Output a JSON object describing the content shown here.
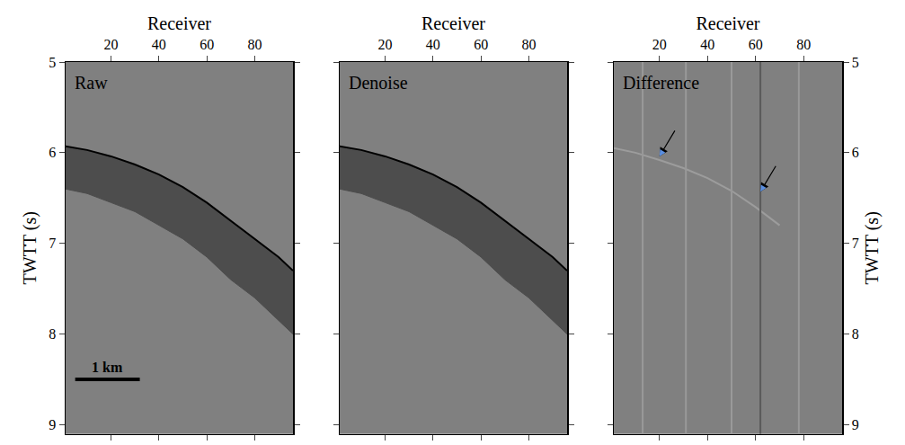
{
  "chart_data": [
    {
      "type": "line",
      "title": "Raw",
      "xlabel": "Receiver",
      "ylabel": "TWTT (s)",
      "xlim": [
        1,
        96
      ],
      "xticks": [
        20,
        40,
        60,
        80
      ],
      "ylim": [
        9.1,
        5
      ],
      "yticks": [
        5,
        6,
        7,
        8,
        9
      ],
      "tick_labels": true,
      "series": [
        {
          "type": "line",
          "color": "#000000",
          "x": [
            1,
            10,
            20,
            30,
            40,
            50,
            60,
            70,
            80,
            90,
            96
          ],
          "values": [
            5.93,
            5.97,
            6.04,
            6.13,
            6.24,
            6.38,
            6.55,
            6.75,
            6.95,
            7.15,
            7.3
          ]
        },
        {
          "type": "area",
          "color": "#4d4d4d",
          "x": [
            1,
            10,
            20,
            30,
            40,
            50,
            60,
            70,
            80,
            90,
            96
          ],
          "values": [
            6.4,
            6.45,
            6.55,
            6.65,
            6.8,
            6.95,
            7.15,
            7.4,
            7.6,
            7.85,
            8.0
          ]
        }
      ],
      "scale_bar": {
        "label": "1 km",
        "x": [
          5,
          32
        ],
        "y": 8.5
      }
    },
    {
      "type": "line",
      "title": "Denoise",
      "xlabel": "Receiver",
      "xlim": [
        1,
        96
      ],
      "xticks": [
        20,
        40,
        60,
        80
      ],
      "ylim": [
        9.1,
        5
      ],
      "yticks": [
        5,
        6,
        7,
        8,
        9
      ],
      "tick_labels": "x",
      "series": [
        {
          "type": "line",
          "color": "#000000",
          "x": [
            1,
            10,
            20,
            30,
            40,
            50,
            60,
            70,
            80,
            90,
            96
          ],
          "values": [
            5.93,
            5.97,
            6.04,
            6.13,
            6.24,
            6.38,
            6.55,
            6.75,
            6.95,
            7.15,
            7.3
          ]
        },
        {
          "type": "area",
          "color": "#4d4d4d",
          "x": [
            1,
            10,
            20,
            30,
            40,
            50,
            60,
            70,
            80,
            90,
            96
          ],
          "values": [
            6.4,
            6.45,
            6.55,
            6.65,
            6.8,
            6.95,
            7.15,
            7.4,
            7.6,
            7.85,
            8.0
          ]
        }
      ]
    },
    {
      "type": "line",
      "title": "Difference",
      "xlabel": "Receiver",
      "ylabel": "TWTT (s)",
      "xlim": [
        1,
        96
      ],
      "xticks": [
        20,
        40,
        60,
        80
      ],
      "ylim": [
        9.1,
        5
      ],
      "yticks": [
        5,
        6,
        7,
        8,
        9
      ],
      "tick_labels": true,
      "series": [
        {
          "type": "line",
          "color": "#9c9c9c",
          "x": [
            1,
            10,
            20,
            30,
            40,
            50,
            60,
            70
          ],
          "values": [
            5.95,
            6.0,
            6.08,
            6.17,
            6.28,
            6.42,
            6.6,
            6.8
          ]
        },
        {
          "type": "line",
          "color": "#999999",
          "x": [
            13,
            13
          ],
          "values": [
            5,
            9.1
          ]
        },
        {
          "type": "line",
          "color": "#999999",
          "x": [
            31,
            31
          ],
          "values": [
            5,
            9.1
          ]
        },
        {
          "type": "line",
          "color": "#9a9a9a",
          "x": [
            50,
            50
          ],
          "values": [
            5,
            9.1
          ]
        },
        {
          "type": "line",
          "color": "#5a5a5a",
          "x": [
            62,
            62
          ],
          "values": [
            5,
            9.1
          ]
        },
        {
          "type": "line",
          "color": "#999999",
          "x": [
            78,
            78
          ],
          "values": [
            5,
            9.1
          ]
        }
      ],
      "annotations": [
        {
          "x": 20,
          "y": 6.04
        },
        {
          "x": 62,
          "y": 6.43
        }
      ]
    }
  ]
}
